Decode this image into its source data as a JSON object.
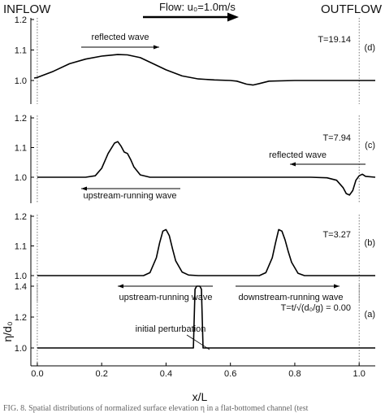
{
  "header": {
    "inflow": "INFLOW",
    "outflow": "OUTFLOW",
    "flow_label": "Flow: u₀=1.0m/s"
  },
  "axes": {
    "xlabel": "x/L",
    "ylabel": "η/d₀",
    "xticks": [
      "0.0",
      "0.2",
      "0.4",
      "0.6",
      "0.8",
      "1.0"
    ]
  },
  "caption": "FIG. 8. Spatial distributions of normalized surface elevation η in a flat-bottomed channel (test",
  "colors": {
    "line": "#000000",
    "arrow": "#000000",
    "guide": "#555555"
  },
  "chart_data": [
    {
      "type": "line",
      "panel": "(d)",
      "time_label": "T=19.14",
      "ylim": [
        1.0,
        1.2
      ],
      "yticks": [
        "1.0",
        "1.1",
        "1.2"
      ],
      "annotations": [
        {
          "text": "reflected wave",
          "arrow": "right"
        }
      ],
      "series": [
        {
          "x": [
            -0.01,
            0.0,
            0.05,
            0.1,
            0.15,
            0.2,
            0.25,
            0.28,
            0.32,
            0.36,
            0.4,
            0.45,
            0.5,
            0.55,
            0.6,
            0.62,
            0.65,
            0.67,
            0.69,
            0.72,
            0.8,
            0.9,
            1.0,
            1.05
          ],
          "y": [
            1.008,
            1.01,
            1.03,
            1.055,
            1.07,
            1.08,
            1.085,
            1.084,
            1.075,
            1.055,
            1.035,
            1.015,
            1.005,
            1.002,
            1.0,
            0.998,
            0.988,
            0.985,
            0.99,
            0.998,
            1.0,
            1.0,
            1.0,
            1.0
          ]
        }
      ]
    },
    {
      "type": "line",
      "panel": "(c)",
      "time_label": "T=7.94",
      "ylim": [
        1.0,
        1.2
      ],
      "yticks": [
        "1.0",
        "1.1",
        "1.2"
      ],
      "annotations": [
        {
          "text": "reflected wave",
          "arrow": "left"
        },
        {
          "text": "upstream-running wave",
          "arrow": "left"
        }
      ],
      "series": [
        {
          "x": [
            0.0,
            0.15,
            0.18,
            0.2,
            0.22,
            0.24,
            0.25,
            0.26,
            0.27,
            0.28,
            0.29,
            0.3,
            0.32,
            0.35,
            0.5,
            0.85,
            0.9,
            0.93,
            0.95,
            0.96,
            0.97,
            0.98,
            0.99,
            1.0,
            1.01,
            1.02,
            1.05
          ],
          "y": [
            1.0,
            1.0,
            1.005,
            1.03,
            1.08,
            1.115,
            1.12,
            1.105,
            1.085,
            1.08,
            1.06,
            1.035,
            1.008,
            1.0,
            1.0,
            1.0,
            0.998,
            0.99,
            0.965,
            0.945,
            0.94,
            0.955,
            0.99,
            1.005,
            1.01,
            1.003,
            1.0
          ]
        }
      ]
    },
    {
      "type": "line",
      "panel": "(b)",
      "time_label": "T=3.27",
      "ylim": [
        1.0,
        1.2
      ],
      "yticks": [
        "1.0",
        "1.1",
        "1.2"
      ],
      "annotations": [
        {
          "text": "upstream-running wave",
          "arrow": "left"
        },
        {
          "text": "downstream-running wave",
          "arrow": "right"
        }
      ],
      "series": [
        {
          "x": [
            0.0,
            0.33,
            0.35,
            0.37,
            0.38,
            0.39,
            0.4,
            0.41,
            0.42,
            0.43,
            0.45,
            0.47,
            0.5,
            0.69,
            0.71,
            0.73,
            0.74,
            0.75,
            0.76,
            0.77,
            0.78,
            0.79,
            0.81,
            0.83,
            1.05
          ],
          "y": [
            1.0,
            1.0,
            1.01,
            1.06,
            1.11,
            1.15,
            1.155,
            1.135,
            1.09,
            1.05,
            1.012,
            1.002,
            1.0,
            1.0,
            1.01,
            1.06,
            1.11,
            1.155,
            1.15,
            1.12,
            1.08,
            1.045,
            1.008,
            1.0,
            1.0
          ]
        }
      ]
    },
    {
      "type": "line",
      "panel": "(a)",
      "time_label": "T=t/√(d₀/g) = 0.00",
      "ylim": [
        1.0,
        1.4
      ],
      "yticks": [
        "1.0",
        "1.2",
        "1.4"
      ],
      "annotations": [
        {
          "text": "initial perturbation"
        }
      ],
      "series": [
        {
          "x": [
            0.0,
            0.485,
            0.49,
            0.495,
            0.5,
            0.505,
            0.51,
            0.515,
            1.05
          ],
          "y": [
            1.0,
            1.0,
            1.38,
            1.4,
            1.4,
            1.4,
            1.38,
            1.0,
            1.0
          ]
        }
      ]
    }
  ]
}
